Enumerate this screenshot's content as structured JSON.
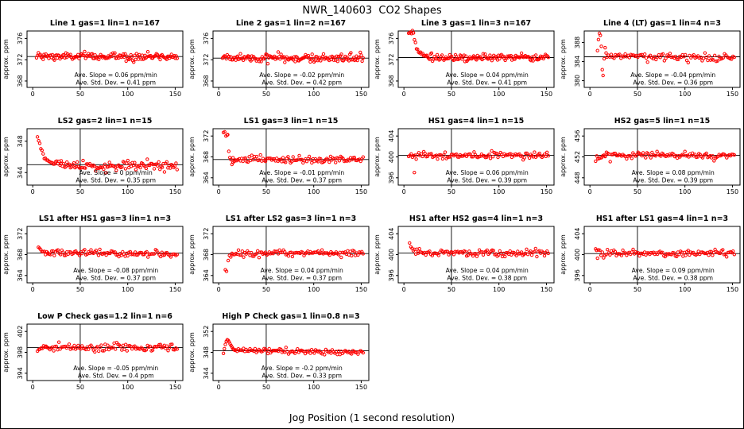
{
  "chart_data": {
    "type": "scatter",
    "figure_title": "NWR_140603  CO2 Shapes",
    "xlabel": "Jog Position (1 second resolution)",
    "colors": {
      "points": "#ff0000",
      "axes": "#000000",
      "background": "#ffffff"
    },
    "shared": {
      "ylabel": "approx. ppm",
      "xlim": [
        -6,
        158
      ],
      "xticks": [
        0,
        50,
        100,
        150
      ],
      "vline_x": 50,
      "marker": "open-circle"
    },
    "plots": [
      {
        "title": "Line 1 gas=1 lin=1 n=167",
        "yticks": [
          368,
          372,
          376
        ],
        "ylim": [
          366.8,
          377.4
        ],
        "mean": 372.6,
        "slope_ppm_min": 0.06,
        "std_dev_ppm": 0.41,
        "annotation": [
          "Ave. Slope = 0.06 ppm/min",
          "Ave. Std. Dev. = 0.41 ppm"
        ],
        "segments": [
          {
            "kind": "flat",
            "x0": 4,
            "x1": 152,
            "n": 150,
            "y": 372.6,
            "sd": 0.38
          }
        ]
      },
      {
        "title": "Line 2 gas=1 lin=2 n=167",
        "yticks": [
          368,
          372,
          376
        ],
        "ylim": [
          366.8,
          377.4
        ],
        "mean": 372.3,
        "slope_ppm_min": -0.02,
        "std_dev_ppm": 0.42,
        "annotation": [
          "Ave. Slope = -0.02 ppm/min",
          "Ave. Std. Dev. = 0.42 ppm"
        ],
        "segments": [
          {
            "kind": "flat",
            "x0": 4,
            "x1": 152,
            "n": 150,
            "y": 372.3,
            "sd": 0.4
          }
        ]
      },
      {
        "title": "Line 3 gas=1 lin=3 n=167",
        "yticks": [
          368,
          372,
          376
        ],
        "ylim": [
          366.8,
          377.4
        ],
        "mean": 372.4,
        "slope_ppm_min": 0.04,
        "std_dev_ppm": 0.41,
        "annotation": [
          "Ave. Slope = 0.04 ppm/min",
          "Ave. Std. Dev. = 0.41 ppm"
        ],
        "segments": [
          {
            "kind": "flat",
            "x0": 5,
            "x1": 10,
            "n": 6,
            "y": 377.1,
            "sd": 0.12
          },
          {
            "kind": "decay",
            "x0": 10,
            "x1": 24,
            "n": 14,
            "from": 377.1,
            "to": 372.6,
            "sd": 0.15
          },
          {
            "kind": "flat",
            "x0": 24,
            "x1": 152,
            "n": 128,
            "y": 372.4,
            "sd": 0.33
          }
        ]
      },
      {
        "title": "Line 4 (LT) gas=1 lin=4 n=3",
        "yticks": [
          380,
          384,
          388
        ],
        "ylim": [
          378.6,
          390.4
        ],
        "mean": 385.0,
        "slope_ppm_min": -0.04,
        "std_dev_ppm": 0.36,
        "annotation": [
          "Ave. Slope = -0.04 ppm/min",
          "Ave. Std. Dev. = 0.36 ppm"
        ],
        "outliers": [
          [
            8,
            386.3
          ],
          [
            9,
            388.6
          ],
          [
            10,
            389.9
          ],
          [
            11,
            389.5
          ],
          [
            12,
            387.2
          ],
          [
            13,
            382.3
          ],
          [
            13.8,
            381.1
          ],
          [
            15,
            384.6
          ],
          [
            16,
            386.9
          ],
          [
            17,
            385.8
          ]
        ],
        "segments": [
          {
            "kind": "flat",
            "x0": 18,
            "x1": 152,
            "n": 92,
            "y": 385.2,
            "sd": 0.42,
            "drift": -0.5
          }
        ]
      },
      {
        "title": "LS2 gas=2 lin=1 n=15",
        "yticks": [
          344,
          348
        ],
        "ylim": [
          342.4,
          349.6
        ],
        "mean": 345.0,
        "slope_ppm_min": 0,
        "std_dev_ppm": 0.35,
        "annotation": [
          "Ave. Slope = 0 ppm/min",
          "Ave. Std. Dev. = 0.35 ppm"
        ],
        "segments": [
          {
            "kind": "decay",
            "x0": 5,
            "x1": 30,
            "n": 22,
            "from": 348.7,
            "to": 345.0,
            "sd": 0.18
          },
          {
            "kind": "flat",
            "x0": 30,
            "x1": 152,
            "n": 102,
            "y": 344.9,
            "sd": 0.3
          }
        ]
      },
      {
        "title": "LS1 gas=3 lin=1 n=15",
        "yticks": [
          364,
          368,
          372
        ],
        "ylim": [
          362.6,
          373.4
        ],
        "mean": 367.5,
        "slope_ppm_min": -0.01,
        "std_dev_ppm": 0.37,
        "annotation": [
          "Ave. Slope = -0.01 ppm/min",
          "Ave. Std. Dev. = 0.37 ppm"
        ],
        "segments": [
          {
            "kind": "flat",
            "x0": 5,
            "x1": 9,
            "n": 4,
            "y": 372.3,
            "sd": 0.25
          },
          {
            "kind": "decay",
            "x0": 9.5,
            "x1": 15,
            "n": 6,
            "from": 371.3,
            "to": 366.9,
            "sd": 0.35
          },
          {
            "kind": "flat",
            "x0": 15,
            "x1": 152,
            "n": 105,
            "y": 367.45,
            "sd": 0.33
          }
        ]
      },
      {
        "title": "HS1 gas=4 lin=1 n=15",
        "yticks": [
          396,
          400,
          404
        ],
        "ylim": [
          394.6,
          405.4
        ],
        "mean": 400.3,
        "slope_ppm_min": 0.06,
        "std_dev_ppm": 0.39,
        "annotation": [
          "Ave. Slope = 0.06 ppm/min",
          "Ave. Std. Dev. = 0.39 ppm"
        ],
        "outliers": [
          [
            11,
            397.0
          ]
        ],
        "segments": [
          {
            "kind": "flat",
            "x0": 5,
            "x1": 152,
            "n": 112,
            "y": 400.3,
            "sd": 0.34
          }
        ]
      },
      {
        "title": "HS2 gas=5 lin=1 n=15",
        "yticks": [
          448,
          452,
          456
        ],
        "ylim": [
          446.6,
          457.4
        ],
        "mean": 452.3,
        "slope_ppm_min": 0.08,
        "std_dev_ppm": 0.39,
        "annotation": [
          "Ave. Slope = 0.08 ppm/min",
          "Ave. Std. Dev. = 0.39 ppm"
        ],
        "segments": [
          {
            "kind": "decay",
            "x0": 6,
            "x1": 16,
            "n": 9,
            "from": 451.1,
            "to": 452.2,
            "sd": 0.25
          },
          {
            "kind": "flat",
            "x0": 16,
            "x1": 152,
            "n": 103,
            "y": 452.3,
            "sd": 0.33
          }
        ]
      },
      {
        "title": "LS1 after HS1 gas=3 lin=1 n=3",
        "yticks": [
          364,
          368,
          372
        ],
        "ylim": [
          362.6,
          373.4
        ],
        "mean": 368.3,
        "slope_ppm_min": -0.08,
        "std_dev_ppm": 0.37,
        "annotation": [
          "Ave. Slope = -0.08 ppm/min",
          "Ave. Std. Dev. = 0.37 ppm"
        ],
        "segments": [
          {
            "kind": "decay",
            "x0": 6,
            "x1": 16,
            "n": 9,
            "from": 369.6,
            "to": 368.4,
            "sd": 0.2
          },
          {
            "kind": "flat",
            "x0": 16,
            "x1": 152,
            "n": 103,
            "y": 368.4,
            "sd": 0.31,
            "drift": -0.25
          }
        ]
      },
      {
        "title": "LS1 after LS2 gas=3 lin=1 n=3",
        "yticks": [
          364,
          368,
          372
        ],
        "ylim": [
          362.6,
          373.4
        ],
        "mean": 368.2,
        "slope_ppm_min": 0.04,
        "std_dev_ppm": 0.37,
        "annotation": [
          "Ave. Slope = 0.04 ppm/min",
          "Ave. Std. Dev. = 0.37 ppm"
        ],
        "outliers": [
          [
            7,
            365.1
          ],
          [
            8.2,
            364.8
          ]
        ],
        "segments": [
          {
            "kind": "decay",
            "x0": 10,
            "x1": 14,
            "n": 4,
            "from": 366.9,
            "to": 368.0,
            "sd": 0.25
          },
          {
            "kind": "flat",
            "x0": 14,
            "x1": 152,
            "n": 103,
            "y": 368.2,
            "sd": 0.31
          }
        ]
      },
      {
        "title": "HS1 after HS2 gas=4 lin=1 n=3",
        "yticks": [
          396,
          400,
          404
        ],
        "ylim": [
          394.6,
          405.4
        ],
        "mean": 400.3,
        "slope_ppm_min": 0.04,
        "std_dev_ppm": 0.38,
        "annotation": [
          "Ave. Slope = 0.04 ppm/min",
          "Ave. Std. Dev. = 0.38 ppm"
        ],
        "segments": [
          {
            "kind": "decay",
            "x0": 6,
            "x1": 15,
            "n": 8,
            "from": 402.1,
            "to": 400.5,
            "sd": 0.25
          },
          {
            "kind": "flat",
            "x0": 15,
            "x1": 152,
            "n": 103,
            "y": 400.35,
            "sd": 0.33
          }
        ]
      },
      {
        "title": "HS1 after LS1 gas=4 lin=1 n=3",
        "yticks": [
          396,
          400,
          404
        ],
        "ylim": [
          394.6,
          405.4
        ],
        "mean": 400.2,
        "slope_ppm_min": 0.09,
        "std_dev_ppm": 0.38,
        "annotation": [
          "Ave. Slope = 0.09 ppm/min",
          "Ave. Std. Dev. = 0.38 ppm"
        ],
        "outliers": [
          [
            6,
            401.1
          ],
          [
            7,
            400.8
          ],
          [
            8,
            399.3
          ]
        ],
        "segments": [
          {
            "kind": "flat",
            "x0": 9,
            "x1": 152,
            "n": 107,
            "y": 400.25,
            "sd": 0.31
          }
        ]
      },
      {
        "title": "Low P Check gas=1.2 lin=1 n=6",
        "yticks": [
          394,
          398,
          402
        ],
        "ylim": [
          392.6,
          403.4
        ],
        "mean": 398.9,
        "slope_ppm_min": -0.05,
        "std_dev_ppm": 0.4,
        "annotation": [
          "Ave. Slope = -0.05 ppm/min",
          "Ave. Std. Dev. = 0.4 ppm"
        ],
        "segments": [
          {
            "kind": "decay",
            "x0": 5,
            "x1": 14,
            "n": 8,
            "from": 398.0,
            "to": 398.9,
            "sd": 0.3
          },
          {
            "kind": "flat",
            "x0": 14,
            "x1": 152,
            "n": 103,
            "y": 398.95,
            "sd": 0.34
          }
        ]
      },
      {
        "title": "High P Check gas=1 lin=0.8 n=3",
        "yticks": [
          344,
          348,
          352
        ],
        "ylim": [
          342.6,
          353.4
        ],
        "mean": 348.3,
        "slope_ppm_min": -0.2,
        "std_dev_ppm": 0.33,
        "annotation": [
          "Ave. Slope = -0.2 ppm/min",
          "Ave. Std. Dev. = 0.33 ppm"
        ],
        "outliers": [
          [
            5,
            347.8
          ],
          [
            6,
            348.7
          ],
          [
            7,
            349.5
          ],
          [
            8,
            350.1
          ],
          [
            9,
            350.4
          ],
          [
            10,
            350.3
          ],
          [
            11,
            350.0
          ],
          [
            12,
            349.6
          ],
          [
            13,
            349.3
          ],
          [
            14,
            349.0
          ],
          [
            15,
            348.7
          ],
          [
            16,
            348.5
          ],
          [
            17,
            348.4
          ]
        ],
        "segments": [
          {
            "kind": "flat",
            "x0": 18,
            "x1": 152,
            "n": 100,
            "y": 348.3,
            "sd": 0.27,
            "drift": -0.3
          }
        ]
      }
    ]
  }
}
